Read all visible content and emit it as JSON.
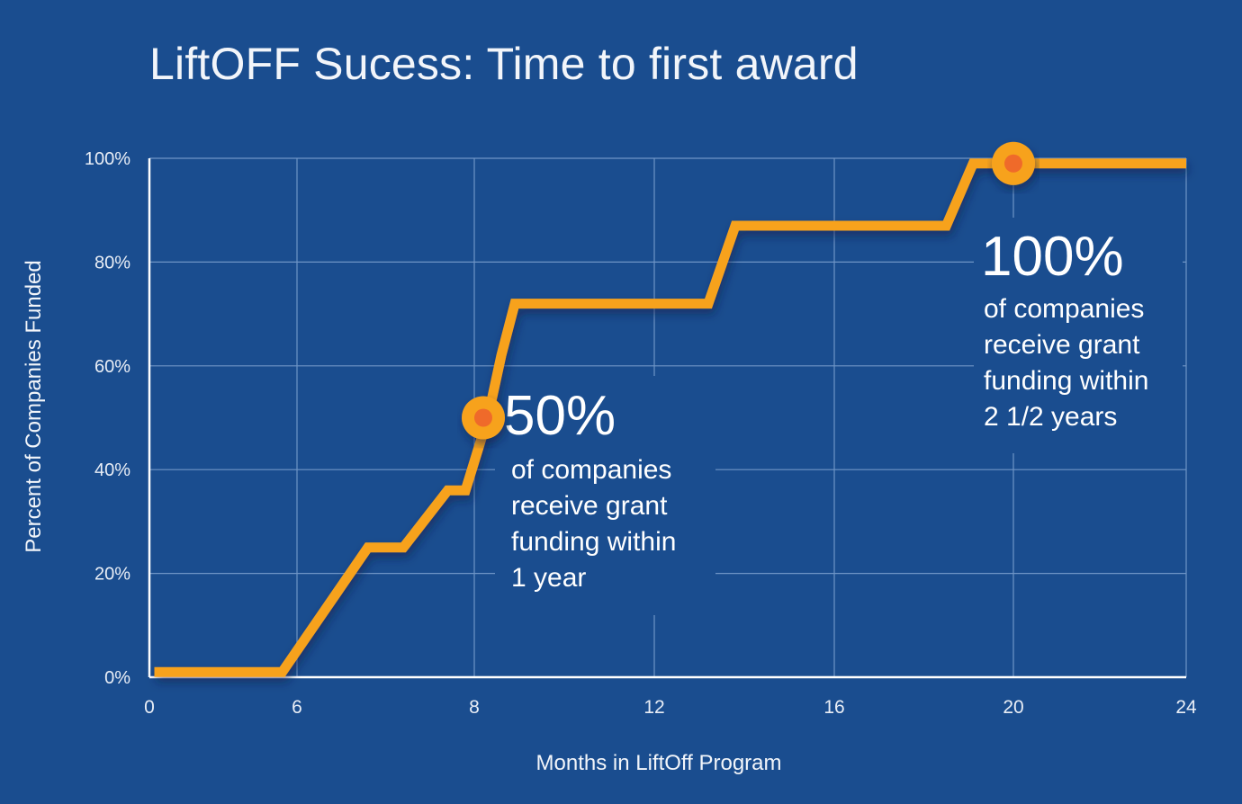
{
  "colors": {
    "background": "#1a4d8f",
    "grid": "#6f95c6",
    "axis": "#ffffff",
    "line": "#f7a21b",
    "marker_outer": "#f7a21b",
    "marker_inner": "#ef6a2a"
  },
  "chart_data": {
    "type": "line",
    "title": "LiftOFF Sucess: Time to first award",
    "xlabel": "Months in LiftOff Program",
    "ylabel": "Percent of Companies Funded",
    "x_ticks": [
      "0",
      "6",
      "8",
      "12",
      "16",
      "20",
      "24"
    ],
    "y_ticks": [
      "0%",
      "20%",
      "40%",
      "60%",
      "80%",
      "100%"
    ],
    "ylim": [
      0,
      100
    ],
    "grid": true,
    "series": [
      {
        "points": [
          {
            "x": 0.2,
            "y": 1
          },
          {
            "x": 5.4,
            "y": 1
          },
          {
            "x": 6.8,
            "y": 25
          },
          {
            "x": 7.2,
            "y": 25
          },
          {
            "x": 7.7,
            "y": 36
          },
          {
            "x": 7.9,
            "y": 36
          },
          {
            "x": 8.3,
            "y": 50
          },
          {
            "x": 8.6,
            "y": 62
          },
          {
            "x": 8.9,
            "y": 72
          },
          {
            "x": 13.2,
            "y": 72
          },
          {
            "x": 13.8,
            "y": 87
          },
          {
            "x": 18.5,
            "y": 87
          },
          {
            "x": 19.1,
            "y": 99
          },
          {
            "x": 24,
            "y": 99
          }
        ]
      }
    ],
    "markers": [
      {
        "x": 8.2,
        "y": 50
      },
      {
        "x": 20,
        "y": 99
      }
    ],
    "annotations": [
      {
        "value": "50%",
        "lines": [
          "of companies",
          "receive grant",
          "funding within",
          "1 year"
        ]
      },
      {
        "value": "100%",
        "lines": [
          "of companies",
          "receive grant",
          "funding within",
          "2 1/2 years"
        ]
      }
    ]
  }
}
